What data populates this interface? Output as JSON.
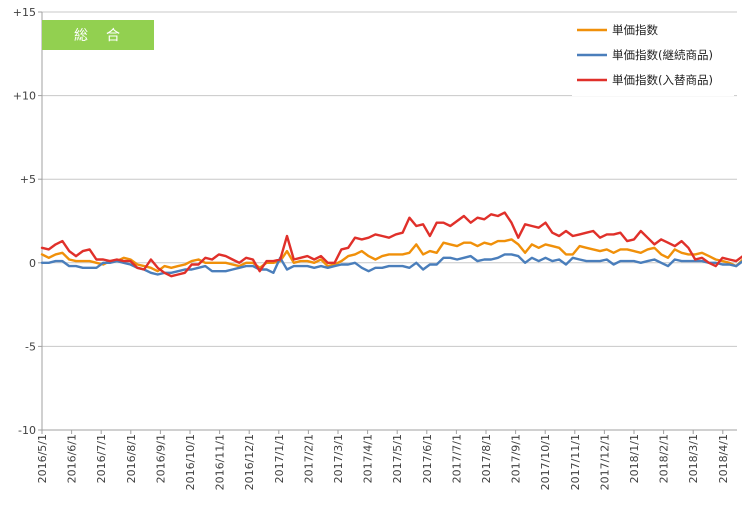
{
  "chart_data": {
    "type": "line",
    "title": "",
    "badge": "総　合",
    "xlabel": "",
    "ylabel": "",
    "ylim": [
      -10,
      15
    ],
    "y_ticks": [
      15,
      10,
      5,
      0,
      -5,
      -10
    ],
    "y_tick_labels": [
      "+15",
      "+10",
      "+5",
      "0",
      "-5",
      "-10"
    ],
    "grid": "horizontal",
    "legend_position": "top-right",
    "x_tick_labels": [
      "2016/5/1",
      "2016/6/1",
      "2016/7/1",
      "2016/8/1",
      "2016/9/1",
      "2016/10/1",
      "2016/11/1",
      "2016/12/1",
      "2017/1/1",
      "2017/2/1",
      "2017/3/1",
      "2017/4/1",
      "2017/5/1",
      "2017/6/1",
      "2017/7/1",
      "2017/8/1",
      "2017/9/1",
      "2017/10/1",
      "2017/11/1",
      "2017/12/1",
      "2018/1/1",
      "2018/2/1",
      "2018/3/1",
      "2018/4/1"
    ],
    "x_start_week_index": 0,
    "x_points_per_month": 4.35,
    "series": [
      {
        "name": "単価指数",
        "color": "#f0900a",
        "values": [
          0.5,
          0.3,
          0.5,
          0.6,
          0.2,
          0.1,
          0.1,
          0.1,
          0.0,
          -0.1,
          0.1,
          0.1,
          0.3,
          0.2,
          -0.1,
          -0.2,
          -0.3,
          -0.5,
          -0.2,
          -0.3,
          -0.2,
          -0.1,
          0.1,
          0.2,
          0.0,
          0.0,
          0.0,
          0.0,
          -0.1,
          -0.2,
          0.0,
          0.0,
          -0.3,
          0.0,
          0.0,
          0.1,
          0.7,
          0.0,
          0.1,
          0.1,
          0.0,
          0.2,
          -0.2,
          -0.1,
          0.1,
          0.4,
          0.5,
          0.7,
          0.4,
          0.2,
          0.4,
          0.5,
          0.5,
          0.5,
          0.6,
          1.1,
          0.5,
          0.7,
          0.6,
          1.2,
          1.1,
          1.0,
          1.2,
          1.2,
          1.0,
          1.2,
          1.1,
          1.3,
          1.3,
          1.4,
          1.1,
          0.6,
          1.1,
          0.9,
          1.1,
          1.0,
          0.9,
          0.5,
          0.5,
          1.0,
          0.9,
          0.8,
          0.7,
          0.8,
          0.6,
          0.8,
          0.8,
          0.7,
          0.6,
          0.8,
          0.9,
          0.5,
          0.3,
          0.8,
          0.6,
          0.5,
          0.5,
          0.6,
          0.4,
          0.2,
          0.1,
          0.0,
          -0.2,
          0.2,
          0.3,
          0.1,
          0.0,
          0.1,
          0.3,
          0.4,
          0.2,
          0.1
        ]
      },
      {
        "name": "単価指数(継続商品)",
        "color": "#4a7ebb",
        "values": [
          0.0,
          0.0,
          0.1,
          0.1,
          -0.2,
          -0.2,
          -0.3,
          -0.3,
          -0.3,
          0.0,
          0.0,
          0.1,
          0.0,
          -0.1,
          -0.3,
          -0.4,
          -0.6,
          -0.7,
          -0.6,
          -0.6,
          -0.5,
          -0.4,
          -0.4,
          -0.3,
          -0.2,
          -0.5,
          -0.5,
          -0.5,
          -0.4,
          -0.3,
          -0.2,
          -0.2,
          -0.4,
          -0.4,
          -0.6,
          0.3,
          -0.4,
          -0.2,
          -0.2,
          -0.2,
          -0.3,
          -0.2,
          -0.3,
          -0.2,
          -0.1,
          -0.1,
          0.0,
          -0.3,
          -0.5,
          -0.3,
          -0.3,
          -0.2,
          -0.2,
          -0.2,
          -0.3,
          0.0,
          -0.4,
          -0.1,
          -0.1,
          0.3,
          0.3,
          0.2,
          0.3,
          0.4,
          0.1,
          0.2,
          0.2,
          0.3,
          0.5,
          0.5,
          0.4,
          0.0,
          0.3,
          0.1,
          0.3,
          0.1,
          0.2,
          -0.1,
          0.3,
          0.2,
          0.1,
          0.1,
          0.1,
          0.2,
          -0.1,
          0.1,
          0.1,
          0.1,
          0.0,
          0.1,
          0.2,
          0.0,
          -0.2,
          0.2,
          0.1,
          0.1,
          0.1,
          0.1,
          0.0,
          0.0,
          -0.1,
          -0.1,
          -0.2,
          0.1,
          0.1,
          0.0,
          -0.1,
          -0.1,
          0.0,
          0.0,
          -0.1,
          -0.2
        ]
      },
      {
        "name": "単価指数(入替商品)",
        "color": "#e0302a",
        "values": [
          0.9,
          0.8,
          1.1,
          1.3,
          0.7,
          0.4,
          0.7,
          0.8,
          0.2,
          0.2,
          0.1,
          0.2,
          0.1,
          0.1,
          -0.3,
          -0.4,
          0.2,
          -0.3,
          -0.6,
          -0.8,
          -0.7,
          -0.6,
          -0.1,
          -0.1,
          0.3,
          0.2,
          0.5,
          0.4,
          0.2,
          0.0,
          0.3,
          0.2,
          -0.5,
          0.1,
          0.1,
          0.2,
          1.6,
          0.2,
          0.3,
          0.4,
          0.2,
          0.4,
          0.0,
          0.0,
          0.8,
          0.9,
          1.5,
          1.4,
          1.5,
          1.7,
          1.6,
          1.5,
          1.7,
          1.8,
          2.7,
          2.2,
          2.3,
          1.6,
          2.4,
          2.4,
          2.2,
          2.5,
          2.8,
          2.4,
          2.7,
          2.6,
          2.9,
          2.8,
          3.0,
          2.4,
          1.5,
          2.3,
          2.2,
          2.1,
          2.4,
          1.8,
          1.6,
          1.9,
          1.6,
          1.7,
          1.8,
          1.9,
          1.5,
          1.7,
          1.7,
          1.8,
          1.3,
          1.4,
          1.9,
          1.5,
          1.1,
          1.4,
          1.2,
          1.0,
          1.3,
          0.9,
          0.2,
          0.3,
          0.0,
          -0.2,
          0.3,
          0.2,
          0.1,
          0.4,
          0.5,
          0.6,
          0.3,
          0.1,
          0.3,
          0.6,
          0.4,
          0.1
        ]
      }
    ]
  }
}
